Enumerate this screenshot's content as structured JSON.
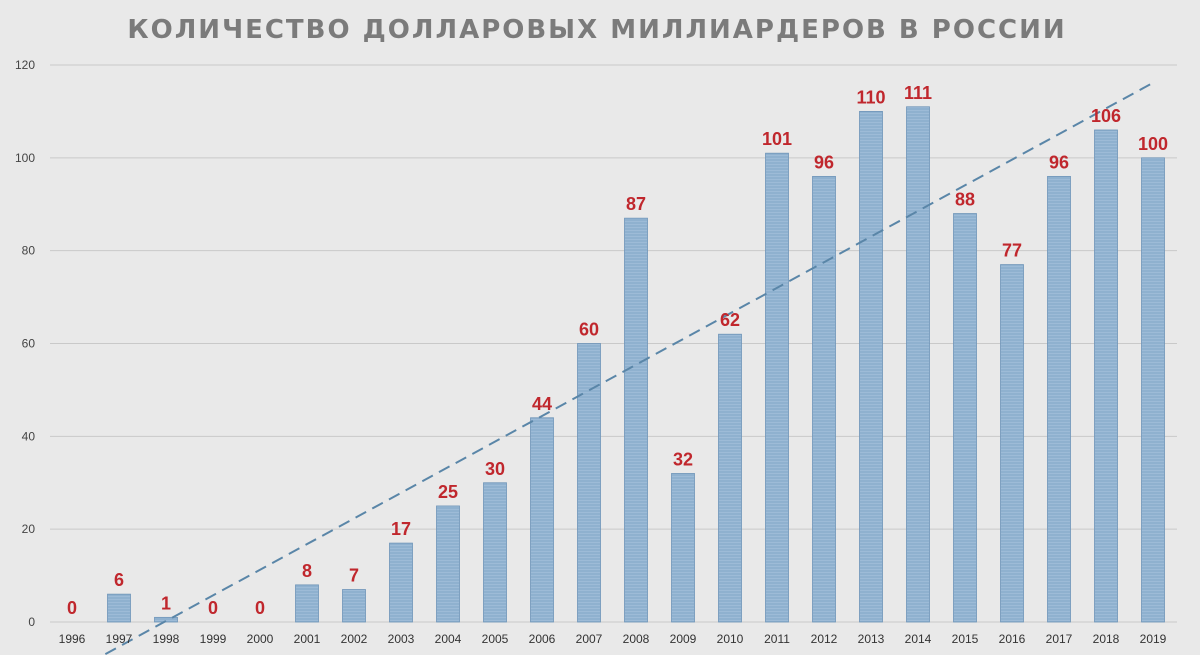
{
  "chart_data": {
    "type": "bar",
    "title": "КОЛИЧЕСТВО ДОЛЛАРОВЫХ МИЛЛИАРДЕРОВ В РОССИИ",
    "categories": [
      "1996",
      "1997",
      "1998",
      "1999",
      "2000",
      "2001",
      "2002",
      "2003",
      "2004",
      "2005",
      "2006",
      "2007",
      "2008",
      "2009",
      "2010",
      "2011",
      "2012",
      "2013",
      "2014",
      "2015",
      "2016",
      "2017",
      "2018",
      "2019"
    ],
    "values": [
      0,
      6,
      1,
      0,
      0,
      8,
      7,
      17,
      25,
      30,
      44,
      60,
      87,
      32,
      62,
      101,
      96,
      110,
      111,
      88,
      77,
      96,
      106,
      100
    ],
    "yticks": [
      0,
      20,
      40,
      60,
      80,
      100,
      120
    ],
    "ylim": [
      0,
      120
    ],
    "xlabel": "",
    "ylabel": "",
    "grid": true,
    "trendline": {
      "style": "dashed",
      "type": "linear"
    },
    "colors": {
      "bar": "#8fb1cf",
      "bar_stroke": "#6f95b8",
      "label": "#c0272d",
      "trend": "#5a86a8",
      "background": "#e9e9e9"
    }
  }
}
